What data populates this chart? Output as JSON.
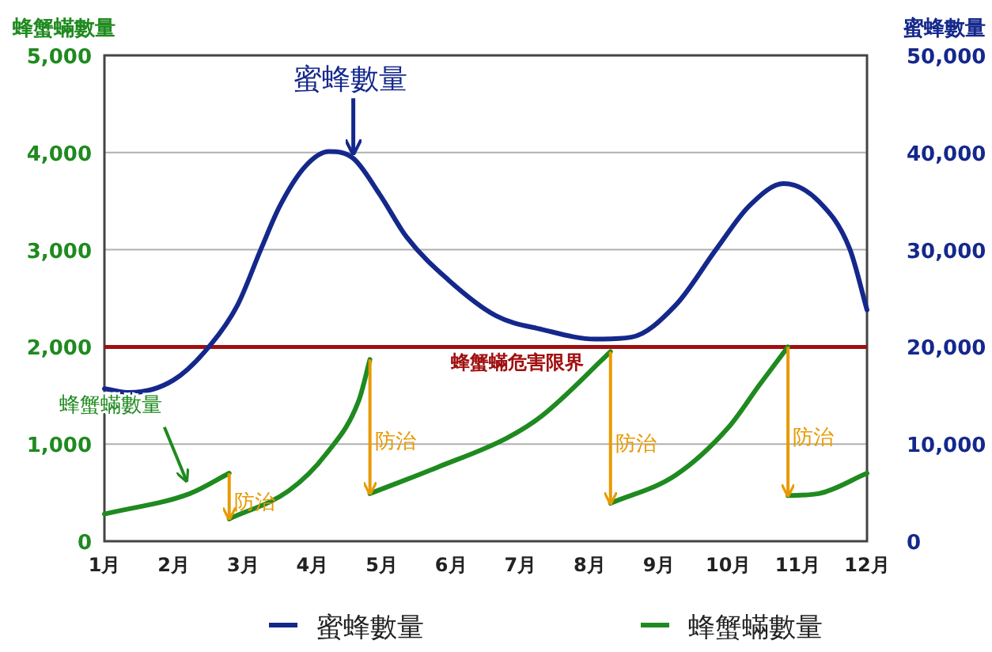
{
  "chart_data": {
    "type": "line",
    "ylabel": "蜂蟹蟎數量",
    "y2label": "蜜蜂數量",
    "xlim": [
      1,
      12
    ],
    "xticks": [
      {
        "value": 1,
        "label": "1月"
      },
      {
        "value": 2,
        "label": "2月"
      },
      {
        "value": 3,
        "label": "3月"
      },
      {
        "value": 4,
        "label": "4月"
      },
      {
        "value": 5,
        "label": "5月"
      },
      {
        "value": 6,
        "label": "6月"
      },
      {
        "value": 7,
        "label": "7月"
      },
      {
        "value": 8,
        "label": "8月"
      },
      {
        "value": 9,
        "label": "9月"
      },
      {
        "value": 10,
        "label": "10月"
      },
      {
        "value": 11,
        "label": "11月"
      },
      {
        "value": 12,
        "label": "12月"
      }
    ],
    "ylim": [
      0,
      5000
    ],
    "yticks": [
      {
        "value": 0,
        "label": "0"
      },
      {
        "value": 1000,
        "label": "1,000"
      },
      {
        "value": 2000,
        "label": "2,000"
      },
      {
        "value": 3000,
        "label": "3,000"
      },
      {
        "value": 4000,
        "label": "4,000"
      },
      {
        "value": 5000,
        "label": "5,000"
      }
    ],
    "y2lim": [
      0,
      50000
    ],
    "y2ticks": [
      {
        "value": 0,
        "label": "0"
      },
      {
        "value": 10000,
        "label": "10,000"
      },
      {
        "value": 20000,
        "label": "20,000"
      },
      {
        "value": 30000,
        "label": "30,000"
      },
      {
        "value": 40000,
        "label": "40,000"
      },
      {
        "value": 50000,
        "label": "50,000"
      }
    ],
    "grid": "y",
    "legend": "bottom",
    "marker": "none",
    "line_style": "solid",
    "series": [
      {
        "name": "蜜蜂數量",
        "color": "#14288c",
        "axis": "y2",
        "x": [
          1,
          1.36,
          2,
          2.53,
          2.92,
          3.26,
          3.53,
          3.9,
          4.24,
          4.59,
          4.97,
          5.36,
          5.96,
          6.65,
          7.31,
          8.08,
          8.6,
          9.24,
          9.83,
          10.3,
          10.8,
          11.3,
          11.75,
          12
        ],
        "values": [
          15700,
          15300,
          16600,
          20200,
          24300,
          30100,
          34500,
          38600,
          40100,
          39400,
          35700,
          31300,
          26900,
          23200,
          21800,
          20800,
          21000,
          24300,
          30100,
          34500,
          36800,
          35000,
          30100,
          23800
        ]
      },
      {
        "name": "蜂蟹蟎數量",
        "color": "#1f8a1f",
        "x": [
          1,
          2.23,
          2.8
        ],
        "values": [
          280,
          490,
          700
        ]
      },
      {
        "color": "#1f8a1f",
        "x": [
          2.8,
          3.66,
          4.2,
          4.67,
          4.83
        ],
        "values": [
          230,
          520,
          900,
          1450,
          1870
        ]
      },
      {
        "color": "#1f8a1f",
        "x": [
          4.83,
          5.8,
          6.8,
          7.31,
          8.3
        ],
        "values": [
          490,
          760,
          1060,
          1290,
          1950
        ]
      },
      {
        "color": "#1f8a1f",
        "x": [
          8.3,
          9.24,
          10.0,
          10.45,
          10.86
        ],
        "values": [
          390,
          680,
          1170,
          1610,
          2000
        ]
      },
      {
        "color": "#1f8a1f",
        "x": [
          10.86,
          11.3,
          12
        ],
        "values": [
          470,
          490,
          700
        ]
      }
    ],
    "ref_lines": [
      {
        "axis": "y",
        "value": 2000,
        "label": "蜂蟹蟎危害限界",
        "color": "#a01010",
        "line_style": "solid"
      }
    ],
    "annotations": [
      {
        "text": "防治",
        "x": 2.8,
        "y": 230
      },
      {
        "text": "防治",
        "x": 4.83,
        "y": 490
      },
      {
        "text": "防治",
        "x": 8.3,
        "y": 390
      },
      {
        "text": "防治",
        "x": 10.86,
        "y": 470
      },
      {
        "text": "蜜蜂數量",
        "x": 4.59,
        "y": 3940
      },
      {
        "text": "蜂蟹蟎數量",
        "x": 2.23,
        "y": 490
      }
    ]
  }
}
